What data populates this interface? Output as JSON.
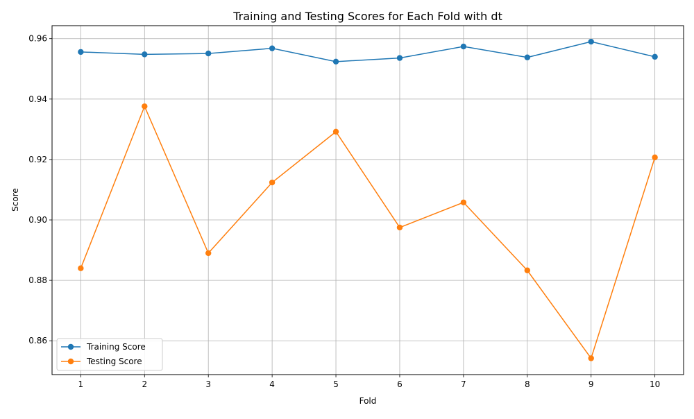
{
  "chart_data": {
    "type": "line",
    "title": "Training and Testing Scores for Each Fold with dt",
    "xlabel": "Fold",
    "ylabel": "Score",
    "x": [
      1,
      2,
      3,
      4,
      5,
      6,
      7,
      8,
      9,
      10
    ],
    "x_ticks": [
      "1",
      "2",
      "3",
      "4",
      "5",
      "6",
      "7",
      "8",
      "9",
      "10"
    ],
    "y_ticks": [
      "0.86",
      "0.88",
      "0.90",
      "0.92",
      "0.94",
      "0.96"
    ],
    "y_tick_values": [
      0.86,
      0.88,
      0.9,
      0.92,
      0.94,
      0.96
    ],
    "xlim": [
      0.55,
      10.45
    ],
    "ylim": [
      0.8488,
      0.9643
    ],
    "grid": true,
    "legend_position": "lower-left",
    "series": [
      {
        "name": "Training Score",
        "color": "#1f77b4",
        "marker": "circle",
        "values": [
          0.9556,
          0.9548,
          0.9551,
          0.9568,
          0.9524,
          0.9536,
          0.9574,
          0.9538,
          0.959,
          0.954
        ]
      },
      {
        "name": "Testing Score",
        "color": "#ff7f0e",
        "marker": "circle",
        "values": [
          0.884,
          0.9376,
          0.889,
          0.9124,
          0.9292,
          0.8975,
          0.9058,
          0.8833,
          0.8542,
          0.9207
        ]
      }
    ]
  }
}
